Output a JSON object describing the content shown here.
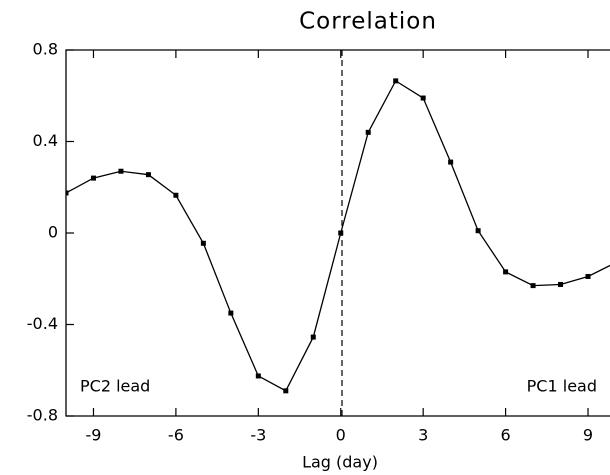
{
  "chart_data": {
    "type": "line",
    "title": "Correlation",
    "x_label": "Lag (day)",
    "x": [
      -10,
      -9,
      -8,
      -7,
      -6,
      -5,
      -4,
      -3,
      -2,
      -1,
      0,
      1,
      2,
      3,
      4,
      5,
      6,
      7,
      8,
      9,
      10
    ],
    "series": [
      {
        "name": "Correlation",
        "color": "#000000",
        "values": [
          0.175,
          0.24,
          0.27,
          0.255,
          0.165,
          -0.045,
          -0.35,
          -0.625,
          -0.69,
          -0.455,
          0,
          0.44,
          0.665,
          0.59,
          0.31,
          0.01,
          -0.17,
          -0.23,
          -0.225,
          -0.19,
          -0.13
        ]
      }
    ],
    "xlim": [
      -10,
      9.8
    ],
    "xticks": [
      -9,
      -6,
      -3,
      0,
      3,
      6,
      9
    ],
    "ylim": [
      -0.8,
      0.8
    ],
    "yticks": [
      -0.8,
      -0.4,
      0,
      0.4,
      0.8
    ],
    "annotations": [
      "PC2 lead",
      "PC1 lead"
    ]
  }
}
